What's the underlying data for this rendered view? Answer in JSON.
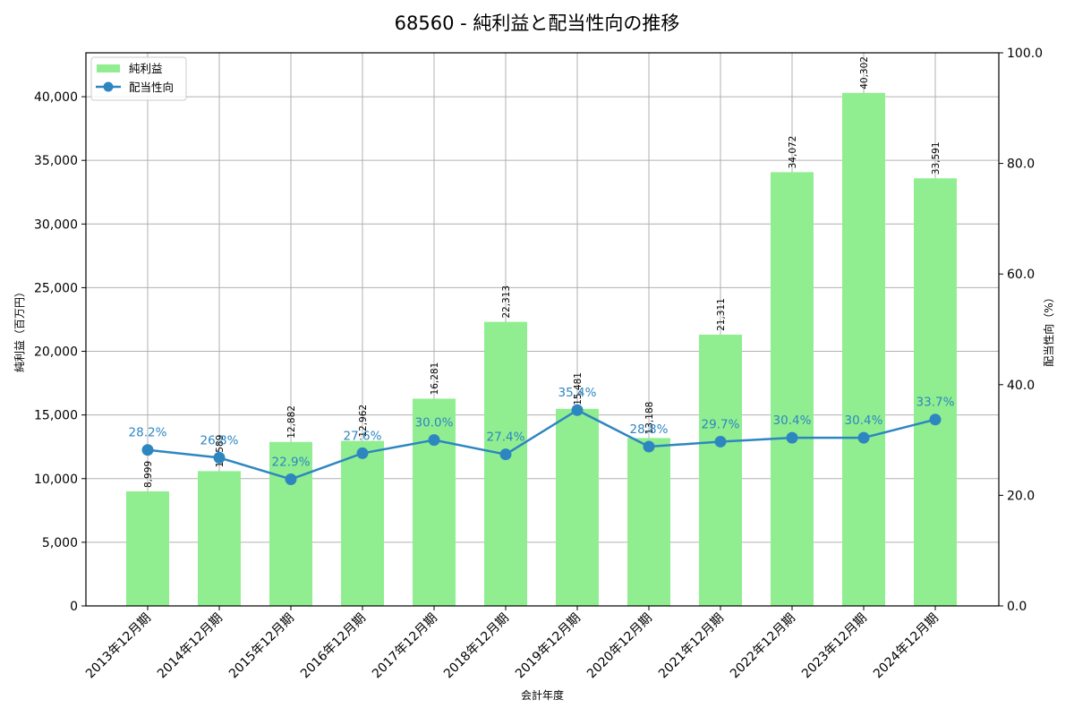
{
  "title": "68560 - 純利益と配当性向の推移",
  "colors": {
    "bar": "#90ee90",
    "line": "#2e86c1",
    "grid": "#b0b0b0",
    "axis": "#000000"
  },
  "legend": {
    "bar_label": "純利益",
    "line_label": "配当性向"
  },
  "chart_data": {
    "type": "bar+line",
    "title": "68560 - 純利益と配当性向の推移",
    "xlabel": "会計年度",
    "ylabel": "純利益（百万円）",
    "y2label": "配当性向（%）",
    "categories": [
      "2013年12月期",
      "2014年12月期",
      "2015年12月期",
      "2016年12月期",
      "2017年12月期",
      "2018年12月期",
      "2019年12月期",
      "2020年12月期",
      "2021年12月期",
      "2022年12月期",
      "2023年12月期",
      "2024年12月期"
    ],
    "series": [
      {
        "name": "純利益",
        "type": "bar",
        "axis": "left",
        "values": [
          8999,
          10589,
          12882,
          12962,
          16281,
          22313,
          15481,
          13188,
          21311,
          34072,
          40302,
          33591
        ],
        "labels": [
          "8,999",
          "10,589",
          "12,882",
          "12,962",
          "16,281",
          "22,313",
          "15,481",
          "13,188",
          "21,311",
          "34,072",
          "40,302",
          "33,591"
        ]
      },
      {
        "name": "配当性向",
        "type": "line",
        "axis": "right",
        "values": [
          28.2,
          26.8,
          22.9,
          27.6,
          30.0,
          27.4,
          35.4,
          28.8,
          29.7,
          30.4,
          30.4,
          33.7
        ],
        "labels": [
          "28.2%",
          "26.8%",
          "22.9%",
          "27.6%",
          "30.0%",
          "27.4%",
          "35.4%",
          "28.8%",
          "29.7%",
          "30.4%",
          "30.4%",
          "33.7%"
        ]
      }
    ],
    "ylim": [
      0,
      43450
    ],
    "y2lim": [
      0,
      100
    ],
    "yticks": [
      0,
      5000,
      10000,
      15000,
      20000,
      25000,
      30000,
      35000,
      40000
    ],
    "ytick_labels": [
      "0",
      "5,000",
      "10,000",
      "15,000",
      "20,000",
      "25,000",
      "30,000",
      "35,000",
      "40,000"
    ],
    "y2ticks": [
      0,
      20,
      40,
      60,
      80,
      100
    ],
    "y2tick_labels": [
      "0.0",
      "20.0",
      "40.0",
      "60.0",
      "80.0",
      "100.0"
    ],
    "grid": true,
    "legend_position": "upper left"
  }
}
